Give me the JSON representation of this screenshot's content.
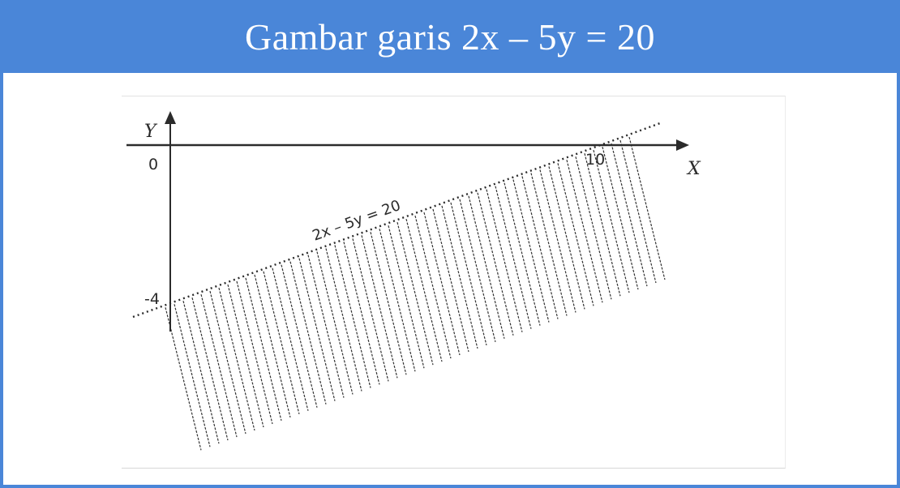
{
  "slide": {
    "title": "Gambar garis 2x – 5y = 20",
    "title_bar_color": "#4a86d8"
  },
  "figure": {
    "axis_x_label": "X",
    "axis_y_label": "Y",
    "origin_label": "0",
    "x_intercept_label": "10",
    "y_intercept_label": "-4",
    "equation_label": "2x – 5y = 20",
    "line_style": "dotted",
    "shaded_region": "below the line",
    "shading_style": "vertical hatching"
  }
}
